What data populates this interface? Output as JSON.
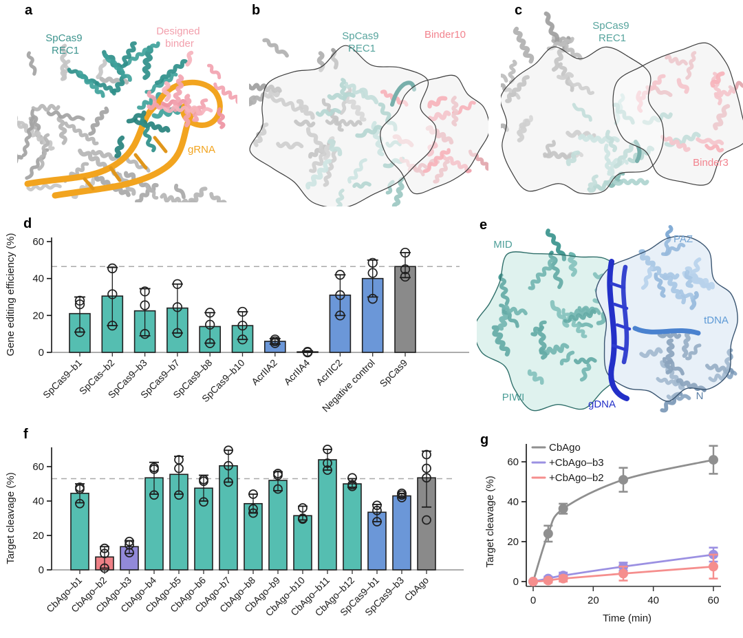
{
  "palette": {
    "teal": "#55BEB1",
    "blue": "#6B97D8",
    "gray": "#8A8A8A",
    "salmon": "#EE8086",
    "purple": "#9289D9",
    "reference": "#A9A9A9",
    "axis": "#2B2B2B",
    "baseline": "#909090"
  },
  "panels": {
    "a": {
      "letter": "a",
      "labels": {
        "protein_line1": "SpCas9",
        "protein_line2": "REC1",
        "binder_line1": "Designed",
        "binder_line2": "binder",
        "rna": "gRNA"
      },
      "colors": {
        "protein": "#3D948E",
        "binder": "#F29FAC",
        "rna": "#F2A41F",
        "scaffold": "#B3B3B3"
      }
    },
    "b": {
      "letter": "b",
      "labels": {
        "protein_line1": "SpCas9",
        "protein_line2": "REC1",
        "binder": "Binder10"
      },
      "colors": {
        "protein": "#56A49D",
        "binder": "#F2838E",
        "density": "#F1F1F1"
      }
    },
    "c": {
      "letter": "c",
      "labels": {
        "protein_line1": "SpCas9",
        "protein_line2": "REC1",
        "binder": "Binder3"
      },
      "colors": {
        "protein": "#56A49D",
        "binder": "#F2838E",
        "density": "#F1F1F1"
      }
    },
    "d": {
      "letter": "d"
    },
    "e": {
      "letter": "e",
      "labels": {
        "mid": "MID",
        "paz": "PAZ",
        "tdna": "tDNA",
        "piwi": "PIWI",
        "gdna": "gDNA",
        "n": "N"
      },
      "colors": {
        "mid_piwi": "#4D9E98",
        "paz": "#76A5D4",
        "tdna": "#5E9AD6",
        "gdna": "#2330C8",
        "n": "#5B7FA6"
      }
    },
    "f": {
      "letter": "f"
    },
    "g": {
      "letter": "g"
    }
  },
  "chart_data": [
    {
      "panel": "d",
      "type": "bar",
      "title": "",
      "xlabel": "",
      "ylabel": "Gene editing efficiency (%)",
      "yticks": [
        0,
        20,
        40,
        60
      ],
      "ylim": [
        0,
        62
      ],
      "grid": false,
      "reference_line": 46.5,
      "categories": [
        "SpCas9–b1",
        "SpCas–b2",
        "SpCas9–b3",
        "SpCas9–b7",
        "SpCas9–b8",
        "SpCas9–b10",
        "AcrIIA2",
        "AcrIIA4",
        "AcrIIC2",
        "Negative control",
        "SpCas9"
      ],
      "values": [
        21,
        30.5,
        22.5,
        24,
        14,
        14.5,
        6,
        0.3,
        31,
        40,
        46.5
      ],
      "err_low": [
        11,
        14.5,
        9,
        10.5,
        5,
        7,
        4.5,
        0,
        20,
        30,
        40.5
      ],
      "err_high": [
        30,
        46,
        34.5,
        37,
        21.5,
        22,
        7.5,
        0.8,
        42,
        50,
        54
      ],
      "points": [
        [
          11,
          26,
          28
        ],
        [
          14.5,
          31.5,
          45.5
        ],
        [
          10,
          25.5,
          33
        ],
        [
          10.5,
          24.5,
          37
        ],
        [
          5,
          15,
          21.5
        ],
        [
          7,
          14.5,
          22
        ],
        [
          5,
          6,
          7
        ],
        [
          0,
          0,
          0.3
        ],
        [
          20,
          31,
          42
        ],
        [
          29,
          43,
          48.5
        ],
        [
          41,
          45,
          54
        ]
      ],
      "bar_colors": [
        "teal",
        "teal",
        "teal",
        "teal",
        "teal",
        "teal",
        "blue",
        "blue",
        "blue",
        "blue",
        "gray"
      ]
    },
    {
      "panel": "f",
      "type": "bar",
      "title": "",
      "xlabel": "",
      "ylabel": "Target cleavage (%)",
      "yticks": [
        0,
        20,
        40,
        60
      ],
      "ylim": [
        0,
        71
      ],
      "grid": false,
      "reference_line": 53,
      "categories": [
        "CbAgo–b1",
        "CbAgo–b2",
        "CbAgo–b3",
        "CbAgo–b4",
        "CbAgo–b5",
        "CbAgo–b6",
        "CbAgo–b7",
        "CbAgo–b8",
        "CbAgo–b9",
        "CbAgo–b10",
        "CbAgo–b11",
        "CbAgo–b12",
        "SpCas9–b1",
        "SpCas9–b3",
        "CbAgo"
      ],
      "values": [
        44.5,
        7.5,
        13.5,
        53.5,
        55.5,
        47.5,
        60.5,
        38.5,
        52,
        31.5,
        64,
        50,
        33.5,
        43,
        53.5
      ],
      "err_low": [
        39,
        1,
        9.5,
        44,
        44,
        40,
        51,
        33,
        46,
        29,
        58,
        48,
        28,
        42,
        36.5
      ],
      "err_high": [
        50,
        13.5,
        17,
        62.5,
        66,
        55,
        69.5,
        44,
        57,
        37,
        70,
        53,
        38,
        44.5,
        69
      ],
      "points": [
        [
          38.5,
          47,
          48
        ],
        [
          1,
          9.5,
          12.5
        ],
        [
          10,
          14.5,
          16.5
        ],
        [
          43.5,
          58.5,
          59.5
        ],
        [
          43.5,
          59,
          64
        ],
        [
          39.5,
          51.5,
          52.5
        ],
        [
          51,
          60.5,
          69.5
        ],
        [
          33,
          35.5,
          44
        ],
        [
          47,
          55,
          56
        ],
        [
          29.5,
          30,
          36
        ],
        [
          58,
          62,
          70
        ],
        [
          48.5,
          49.5,
          53.5
        ],
        [
          28,
          34.5,
          37.5
        ],
        [
          42,
          43.5,
          44.5
        ],
        [
          29,
          53.5,
          59,
          67
        ]
      ],
      "bar_colors": [
        "teal",
        "salmon",
        "purple",
        "teal",
        "teal",
        "teal",
        "teal",
        "teal",
        "teal",
        "teal",
        "teal",
        "teal",
        "blue",
        "blue",
        "gray"
      ]
    },
    {
      "panel": "g",
      "type": "line",
      "title": "",
      "xlabel": "Time (min)",
      "ylabel": "Target cleavage (%)",
      "xticks": [
        0,
        20,
        40,
        60
      ],
      "yticks": [
        0,
        20,
        40,
        60
      ],
      "xlim": [
        0,
        63
      ],
      "ylim": [
        0,
        68
      ],
      "grid": false,
      "legend_position": "top-left",
      "series": [
        {
          "name": "CbAgo",
          "color": "#8F8F8F",
          "x": [
            0,
            5,
            10,
            30,
            60
          ],
          "y": [
            0,
            24,
            36.5,
            51,
            61
          ],
          "err": [
            0.5,
            4,
            2.5,
            6,
            7
          ]
        },
        {
          "name": "+CbAgo–b3",
          "color": "#9B90E2",
          "x": [
            0,
            5,
            10,
            30,
            60
          ],
          "y": [
            0,
            1.5,
            3,
            7.5,
            13.5
          ],
          "err": [
            0.5,
            1,
            1.5,
            2,
            3.5
          ]
        },
        {
          "name": "+CbAgo–b2",
          "color": "#F58E8D",
          "x": [
            0,
            5,
            10,
            30,
            60
          ],
          "y": [
            0,
            0.5,
            1.5,
            4,
            7.5
          ],
          "err": [
            0.5,
            1,
            1.5,
            3.5,
            6
          ]
        }
      ]
    }
  ]
}
